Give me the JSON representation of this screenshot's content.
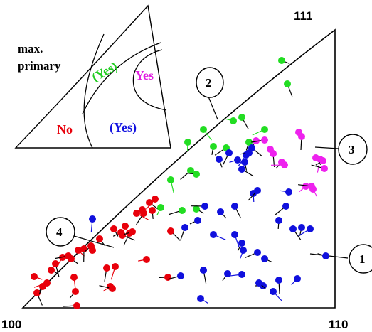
{
  "corners": {
    "c100": "100",
    "c110": "110",
    "c111": "111"
  },
  "inset": {
    "title_line1": "max.",
    "title_line2": "primary",
    "regions": [
      {
        "label": "No",
        "color": "#e8000b"
      },
      {
        "label": "(Yes)",
        "color": "#22cc22"
      },
      {
        "label": "Yes",
        "color": "#e020e0"
      },
      {
        "label": "(Yes)",
        "color": "#1010e0"
      }
    ]
  },
  "callouts": [
    "1",
    "2",
    "3",
    "4"
  ],
  "colors": {
    "red": "#e8000b",
    "green": "#22dd22",
    "magenta": "#ee22ee",
    "blue": "#1010dd",
    "stroke": "#000000"
  }
}
